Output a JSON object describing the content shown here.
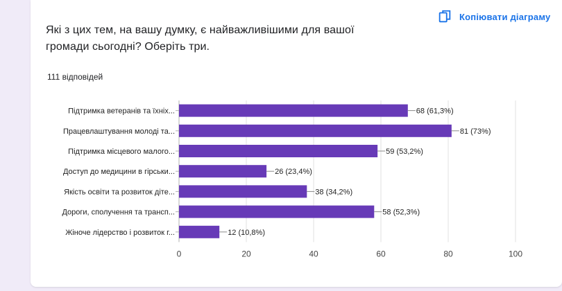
{
  "question": {
    "line1": "Які з цих тем, на вашу думку, є найважливішими для вашої",
    "line2": "громади сьогодні?  Оберіть три."
  },
  "responses_label": "111 відповідей",
  "copy_button": {
    "label": "Копіювати діаграму",
    "icon": "copy-icon"
  },
  "colors": {
    "bar": "#673ab7",
    "accent": "#1a73e8",
    "page_bg": "#f0ebf8",
    "grid": "#e0e0e0"
  },
  "chart_data": {
    "type": "bar",
    "orientation": "horizontal",
    "categories": [
      "Підтримка ветеранів та їхніх...",
      "Працевлаштування молоді та...",
      "Підтримка місцевого малого...",
      "Доступ до медицини в гірськи...",
      "Якість освіти та розвиток діте...",
      "Дороги, сполучення та трансп...",
      "Жіноче лідерство і розвиток г..."
    ],
    "values": [
      68,
      81,
      59,
      26,
      38,
      58,
      12
    ],
    "data_labels": [
      "68 (61,3%)",
      "81 (73%)",
      "59 (53,2%)",
      "26 (23,4%)",
      "38 (34,2%)",
      "58 (52,3%)",
      "12 (10,8%)"
    ],
    "xlim": [
      0,
      100
    ],
    "xticks": [
      0,
      20,
      40,
      60,
      80,
      100
    ],
    "grid": true
  }
}
